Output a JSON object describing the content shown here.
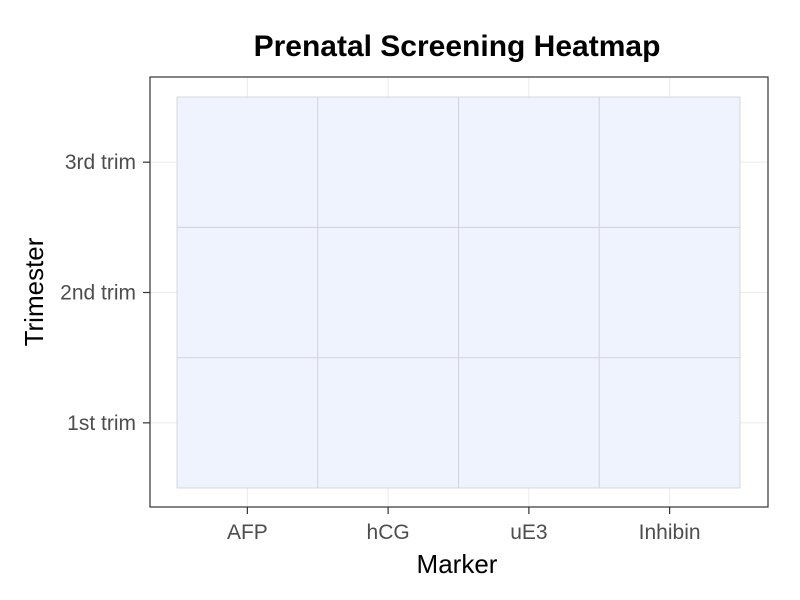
{
  "chart_data": {
    "type": "heatmap",
    "title": "Prenatal Screening Heatmap",
    "xlabel": "Marker",
    "ylabel": "Trimester",
    "x_categories": [
      "AFP",
      "hCG",
      "uE3",
      "Inhibin"
    ],
    "y_categories": [
      "1st trim",
      "2nd trim",
      "3rd trim"
    ],
    "values": [
      [
        null,
        null,
        null,
        null
      ],
      [
        null,
        null,
        null,
        null
      ],
      [
        null,
        null,
        null,
        null
      ]
    ],
    "tile_color": "#eff3fe",
    "tile_border_color": "#cfd0d8",
    "panel_background": "#ffffff",
    "grid_color": "#ebebeb",
    "panel_border_color": "#333333",
    "grid": true,
    "legend": "none"
  }
}
